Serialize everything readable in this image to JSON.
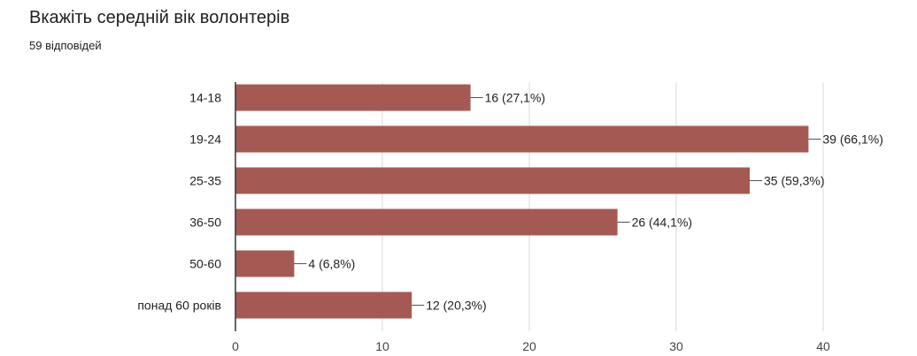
{
  "header": {
    "title": "Вкажіть середній вік волонтерів",
    "responses": "59 відповідей"
  },
  "colors": {
    "bar": "#a45a52",
    "grid": "#d9d9d9",
    "axis": "#333333"
  },
  "chart_data": {
    "type": "bar",
    "orientation": "horizontal",
    "categories": [
      "14-18",
      "19-24",
      "25-35",
      "36-50",
      "50-60",
      "понад 60 років"
    ],
    "values": [
      16,
      39,
      35,
      26,
      4,
      12
    ],
    "data_labels": [
      "16 (27,1%)",
      "39 (66,1%)",
      "35 (59,3%)",
      "26 (44,1%)",
      "4 (6,8%)",
      "12 (20,3%)"
    ],
    "xlim": [
      0,
      40
    ],
    "xticks": [
      0,
      10,
      20,
      30,
      40
    ],
    "grid": true,
    "legend": "none"
  }
}
